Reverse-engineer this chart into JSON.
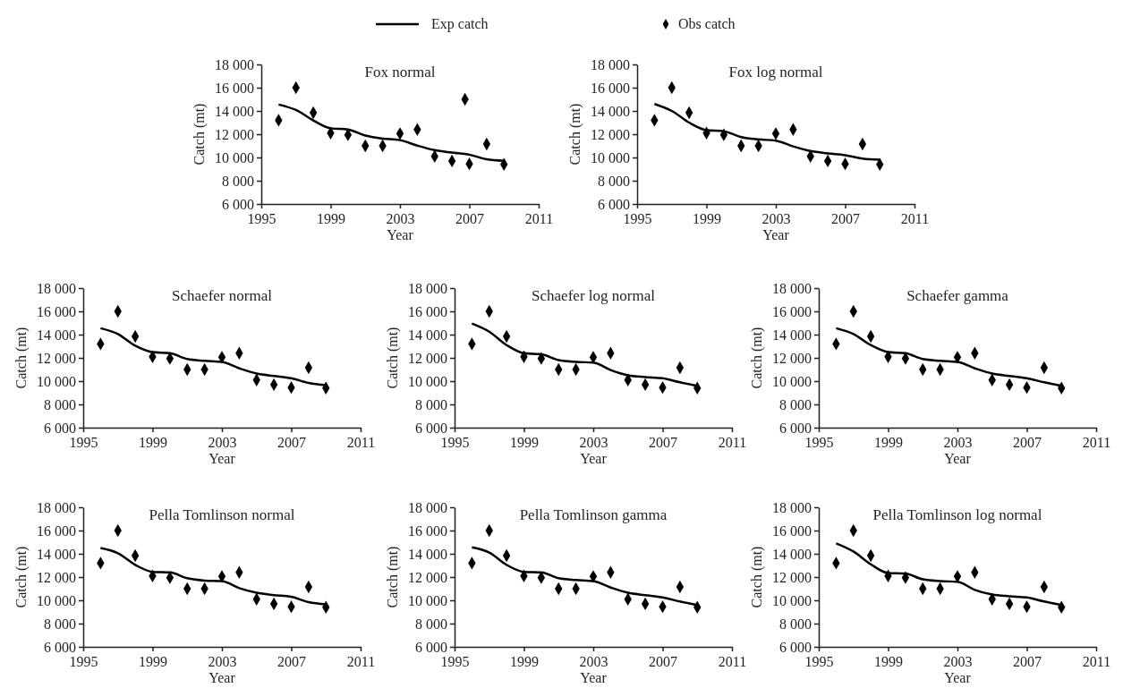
{
  "chart_data": [
    {
      "type": "line",
      "title": "Fox normal",
      "xlabel": "Year",
      "ylabel": "Catch (mt)",
      "legend": "top",
      "xlim": [
        1995,
        2011
      ],
      "xticks": [
        1995,
        1999,
        2003,
        2007,
        2011
      ],
      "ylim": [
        6000,
        18000
      ],
      "yticks": [
        {
          "value": 6000,
          "label": "6 000"
        },
        {
          "value": 8000,
          "label": "8 000"
        },
        {
          "value": 10000,
          "label": "10 000"
        },
        {
          "value": 12000,
          "label": "12 000"
        },
        {
          "value": 14000,
          "label": "14 000"
        },
        {
          "value": 16000,
          "label": "16 000"
        },
        {
          "value": 18000,
          "label": "18 000"
        }
      ],
      "series": [
        {
          "name": "Exp catch",
          "type": "line",
          "color": "#000000",
          "x": [
            1996,
            1997,
            1998,
            1999,
            2000,
            2001,
            2002,
            2003,
            2004,
            2005,
            2006,
            2007,
            2008,
            2009
          ],
          "values": [
            14550,
            14080,
            13190,
            12510,
            12400,
            11880,
            11620,
            11490,
            11020,
            10630,
            10420,
            10240,
            9840,
            9710
          ]
        },
        {
          "name": "Obs catch",
          "type": "scatter",
          "marker": "diamond",
          "color": "#000000",
          "x": [
            1996,
            1997,
            1998,
            1999,
            2000,
            2001,
            2002,
            2003,
            2004,
            2005,
            2006,
            2006.75,
            2007,
            2008,
            2009
          ],
          "values": [
            13200,
            16000,
            13850,
            12100,
            11950,
            11000,
            11000,
            12050,
            12400,
            10100,
            9700,
            15000,
            9450,
            11150,
            9400
          ]
        }
      ]
    },
    {
      "type": "line",
      "title": "Fox log normal",
      "xlabel": "Year",
      "ylabel": "Catch (mt)",
      "xlim": [
        1995,
        2011
      ],
      "xticks": [
        1995,
        1999,
        2003,
        2007,
        2011
      ],
      "ylim": [
        6000,
        18000
      ],
      "yticks": [
        {
          "value": 6000,
          "label": "6 000"
        },
        {
          "value": 8000,
          "label": "8 000"
        },
        {
          "value": 10000,
          "label": "10 000"
        },
        {
          "value": 12000,
          "label": "12 000"
        },
        {
          "value": 14000,
          "label": "14 000"
        },
        {
          "value": 16000,
          "label": "16 000"
        },
        {
          "value": 18000,
          "label": "18 000"
        }
      ],
      "series": [
        {
          "type": "line",
          "color": "#000000",
          "x": [
            1996,
            1997,
            1998,
            1999,
            2000,
            2001,
            2002,
            2003,
            2004,
            2005,
            2006,
            2007,
            2008,
            2009
          ],
          "values": [
            14600,
            14000,
            13000,
            12350,
            12250,
            11750,
            11550,
            11450,
            10950,
            10550,
            10350,
            10200,
            9900,
            9800
          ]
        },
        {
          "type": "scatter",
          "marker": "diamond",
          "color": "#000000",
          "x": [
            1996,
            1997,
            1998,
            1999,
            2000,
            2001,
            2002,
            2003,
            2004,
            2005,
            2006,
            2007,
            2008,
            2009
          ],
          "values": [
            13200,
            16000,
            13850,
            12100,
            11950,
            11000,
            11000,
            12050,
            12400,
            10100,
            9700,
            9450,
            11150,
            9400
          ]
        }
      ]
    },
    {
      "type": "line",
      "title": "Schaefer normal",
      "xlabel": "Year",
      "ylabel": "Catch (mt)",
      "xlim": [
        1995,
        2011
      ],
      "xticks": [
        1995,
        1999,
        2003,
        2007,
        2011
      ],
      "ylim": [
        6000,
        18000
      ],
      "yticks": [
        {
          "value": 6000,
          "label": "6 000"
        },
        {
          "value": 8000,
          "label": "8 000"
        },
        {
          "value": 10000,
          "label": "10 000"
        },
        {
          "value": 12000,
          "label": "12 000"
        },
        {
          "value": 14000,
          "label": "14 000"
        },
        {
          "value": 16000,
          "label": "16 000"
        },
        {
          "value": 18000,
          "label": "18 000"
        }
      ],
      "series": [
        {
          "type": "line",
          "color": "#000000",
          "x": [
            1996,
            1997,
            1998,
            1999,
            2000,
            2001,
            2002,
            2003,
            2004,
            2005,
            2006,
            2007,
            2008,
            2009
          ],
          "values": [
            14550,
            14050,
            13050,
            12500,
            12400,
            11900,
            11750,
            11650,
            11100,
            10650,
            10450,
            10250,
            9850,
            9650
          ]
        },
        {
          "type": "scatter",
          "marker": "diamond",
          "color": "#000000",
          "x": [
            1996,
            1997,
            1998,
            1999,
            2000,
            2001,
            2002,
            2003,
            2004,
            2005,
            2006,
            2007,
            2008,
            2009
          ],
          "values": [
            13200,
            16000,
            13850,
            12100,
            11950,
            11000,
            11000,
            12050,
            12400,
            10100,
            9700,
            9450,
            11150,
            9400
          ]
        }
      ]
    },
    {
      "type": "line",
      "title": "Schaefer log normal",
      "xlabel": "Year",
      "ylabel": "Catch (mt)",
      "xlim": [
        1995,
        2011
      ],
      "xticks": [
        1995,
        1999,
        2003,
        2007,
        2011
      ],
      "ylim": [
        6000,
        18000
      ],
      "yticks": [
        {
          "value": 6000,
          "label": "6 000"
        },
        {
          "value": 8000,
          "label": "8 000"
        },
        {
          "value": 10000,
          "label": "10 000"
        },
        {
          "value": 12000,
          "label": "12 000"
        },
        {
          "value": 14000,
          "label": "14 000"
        },
        {
          "value": 16000,
          "label": "16 000"
        },
        {
          "value": 18000,
          "label": "18 000"
        }
      ],
      "series": [
        {
          "type": "line",
          "color": "#000000",
          "x": [
            1996,
            1997,
            1998,
            1999,
            2000,
            2001,
            2002,
            2003,
            2004,
            2005,
            2006,
            2007,
            2008,
            2009
          ],
          "values": [
            14950,
            14250,
            13100,
            12400,
            12300,
            11800,
            11650,
            11600,
            10950,
            10500,
            10350,
            10250,
            9900,
            9600
          ]
        },
        {
          "type": "scatter",
          "marker": "diamond",
          "color": "#000000",
          "x": [
            1996,
            1997,
            1998,
            1999,
            2000,
            2001,
            2002,
            2003,
            2004,
            2005,
            2006,
            2007,
            2008,
            2009
          ],
          "values": [
            13200,
            16000,
            13850,
            12100,
            11950,
            11000,
            11000,
            12050,
            12400,
            10100,
            9700,
            9450,
            11150,
            9400
          ]
        }
      ]
    },
    {
      "type": "line",
      "title": "Schaefer gamma",
      "xlabel": "Year",
      "ylabel": "Catch (mt)",
      "xlim": [
        1995,
        2011
      ],
      "xticks": [
        1995,
        1999,
        2003,
        2007,
        2011
      ],
      "ylim": [
        6000,
        18000
      ],
      "yticks": [
        {
          "value": 6000,
          "label": "6 000"
        },
        {
          "value": 8000,
          "label": "8 000"
        },
        {
          "value": 10000,
          "label": "10 000"
        },
        {
          "value": 12000,
          "label": "12 000"
        },
        {
          "value": 14000,
          "label": "14 000"
        },
        {
          "value": 16000,
          "label": "16 000"
        },
        {
          "value": 18000,
          "label": "18 000"
        }
      ],
      "series": [
        {
          "type": "line",
          "color": "#000000",
          "x": [
            1996,
            1997,
            1998,
            1999,
            2000,
            2001,
            2002,
            2003,
            2004,
            2005,
            2006,
            2007,
            2008,
            2009
          ],
          "values": [
            14550,
            14050,
            13100,
            12500,
            12400,
            11900,
            11750,
            11650,
            11100,
            10650,
            10450,
            10250,
            9900,
            9600
          ]
        },
        {
          "type": "scatter",
          "marker": "diamond",
          "color": "#000000",
          "x": [
            1996,
            1997,
            1998,
            1999,
            2000,
            2001,
            2002,
            2003,
            2004,
            2005,
            2006,
            2007,
            2008,
            2009
          ],
          "values": [
            13200,
            16000,
            13850,
            12100,
            11950,
            11000,
            11000,
            12050,
            12400,
            10100,
            9700,
            9450,
            11150,
            9400
          ]
        }
      ]
    },
    {
      "type": "line",
      "title": "Pella Tomlinson normal",
      "xlabel": "Year",
      "ylabel": "Catch (mt)",
      "xlim": [
        1995,
        2011
      ],
      "xticks": [
        1995,
        1999,
        2003,
        2007,
        2011
      ],
      "ylim": [
        6000,
        18000
      ],
      "yticks": [
        {
          "value": 6000,
          "label": "6 000"
        },
        {
          "value": 8000,
          "label": "8 000"
        },
        {
          "value": 10000,
          "label": "10 000"
        },
        {
          "value": 12000,
          "label": "12 000"
        },
        {
          "value": 14000,
          "label": "14 000"
        },
        {
          "value": 16000,
          "label": "16 000"
        },
        {
          "value": 18000,
          "label": "18 000"
        }
      ],
      "series": [
        {
          "type": "line",
          "color": "#000000",
          "x": [
            1996,
            1997,
            1998,
            1999,
            2000,
            2001,
            2002,
            2003,
            2004,
            2005,
            2006,
            2007,
            2008,
            2009
          ],
          "values": [
            14500,
            14050,
            13050,
            12450,
            12400,
            11900,
            11700,
            11650,
            11050,
            10650,
            10450,
            10300,
            9850,
            9650
          ]
        },
        {
          "type": "scatter",
          "marker": "diamond",
          "color": "#000000",
          "x": [
            1996,
            1997,
            1998,
            1999,
            2000,
            2001,
            2002,
            2003,
            2004,
            2005,
            2006,
            2007,
            2008,
            2009
          ],
          "values": [
            13200,
            16000,
            13850,
            12100,
            11950,
            11000,
            11000,
            12050,
            12400,
            10100,
            9700,
            9450,
            11150,
            9400
          ]
        }
      ]
    },
    {
      "type": "line",
      "title": "Pella Tomlinson gamma",
      "xlabel": "Year",
      "ylabel": "Catch (mt)",
      "xlim": [
        1995,
        2011
      ],
      "xticks": [
        1995,
        1999,
        2003,
        2007,
        2011
      ],
      "ylim": [
        6000,
        18000
      ],
      "yticks": [
        {
          "value": 6000,
          "label": "6 000"
        },
        {
          "value": 8000,
          "label": "8 000"
        },
        {
          "value": 10000,
          "label": "10 000"
        },
        {
          "value": 12000,
          "label": "12 000"
        },
        {
          "value": 14000,
          "label": "14 000"
        },
        {
          "value": 16000,
          "label": "16 000"
        },
        {
          "value": 18000,
          "label": "18 000"
        }
      ],
      "series": [
        {
          "type": "line",
          "color": "#000000",
          "x": [
            1996,
            1997,
            1998,
            1999,
            2000,
            2001,
            2002,
            2003,
            2004,
            2005,
            2006,
            2007,
            2008,
            2009
          ],
          "values": [
            14550,
            14100,
            13050,
            12450,
            12400,
            11900,
            11750,
            11650,
            11100,
            10650,
            10450,
            10250,
            9900,
            9600
          ]
        },
        {
          "type": "scatter",
          "marker": "diamond",
          "color": "#000000",
          "x": [
            1996,
            1997,
            1998,
            1999,
            2000,
            2001,
            2002,
            2003,
            2004,
            2005,
            2006,
            2007,
            2008,
            2009
          ],
          "values": [
            13200,
            16000,
            13850,
            12100,
            11950,
            11000,
            11000,
            12050,
            12400,
            10100,
            9700,
            9450,
            11150,
            9400
          ]
        }
      ]
    },
    {
      "type": "line",
      "title": "Pella Tomlinson log normal",
      "xlabel": "Year",
      "ylabel": "Catch (mt)",
      "xlim": [
        1995,
        2011
      ],
      "xticks": [
        1995,
        1999,
        2003,
        2007,
        2011
      ],
      "ylim": [
        6000,
        18000
      ],
      "yticks": [
        {
          "value": 6000,
          "label": "6 000"
        },
        {
          "value": 8000,
          "label": "8 000"
        },
        {
          "value": 10000,
          "label": "10 000"
        },
        {
          "value": 12000,
          "label": "12 000"
        },
        {
          "value": 14000,
          "label": "14 000"
        },
        {
          "value": 16000,
          "label": "16 000"
        },
        {
          "value": 18000,
          "label": "18 000"
        }
      ],
      "series": [
        {
          "type": "line",
          "color": "#000000",
          "x": [
            1996,
            1997,
            1998,
            1999,
            2000,
            2001,
            2002,
            2003,
            2004,
            2005,
            2006,
            2007,
            2008,
            2009
          ],
          "values": [
            14900,
            14200,
            13100,
            12350,
            12300,
            11800,
            11650,
            11600,
            10900,
            10500,
            10350,
            10250,
            9900,
            9600
          ]
        },
        {
          "type": "scatter",
          "marker": "diamond",
          "color": "#000000",
          "x": [
            1996,
            1997,
            1998,
            1999,
            2000,
            2001,
            2002,
            2003,
            2004,
            2005,
            2006,
            2007,
            2008,
            2009
          ],
          "values": [
            13200,
            16000,
            13850,
            12100,
            11950,
            11000,
            11000,
            12050,
            12400,
            10100,
            9700,
            9450,
            11150,
            9400
          ]
        }
      ]
    }
  ]
}
